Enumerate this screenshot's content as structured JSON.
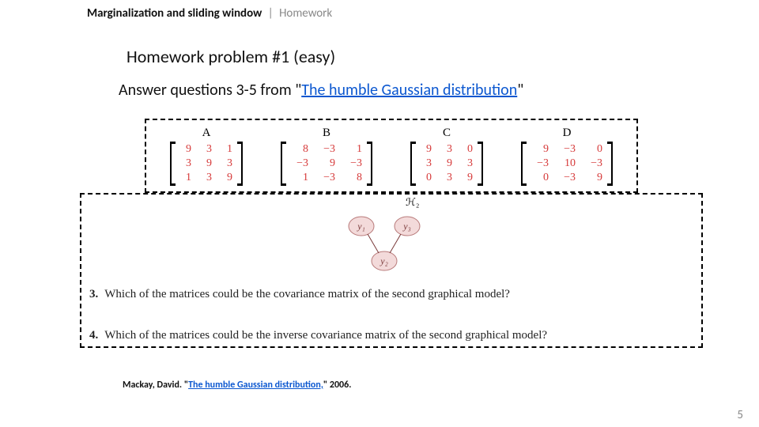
{
  "breadcrumb": {
    "section": "Marginalization and sliding window",
    "sep": "|",
    "tail": "Homework"
  },
  "title": "Homework problem #1 (easy)",
  "instruction": {
    "pre": "Answer questions 3-5 from \"",
    "link": "The humble Gaussian distribution",
    "post": "\""
  },
  "colors": {
    "matrix_value": "#d63a3a",
    "node_fill": "#f3dada",
    "node_stroke": "#b87a7a",
    "link": "#0b57d0"
  },
  "matrices": [
    {
      "label": "A",
      "rows": [
        [
          "9",
          "3",
          "1"
        ],
        [
          "3",
          "9",
          "3"
        ],
        [
          "1",
          "3",
          "9"
        ]
      ]
    },
    {
      "label": "B",
      "rows": [
        [
          "8",
          "−3",
          "1"
        ],
        [
          "−3",
          "9",
          "−3"
        ],
        [
          "1",
          "−3",
          "8"
        ]
      ]
    },
    {
      "label": "C",
      "rows": [
        [
          "9",
          "3",
          "0"
        ],
        [
          "3",
          "9",
          "3"
        ],
        [
          "0",
          "3",
          "9"
        ]
      ]
    },
    {
      "label": "D",
      "rows": [
        [
          "9",
          "−3",
          "0"
        ],
        [
          "−3",
          "10",
          "−3"
        ],
        [
          "0",
          "−3",
          "9"
        ]
      ]
    }
  ],
  "graph": {
    "label": "ℋ₂",
    "nodes": [
      "y₁",
      "y₃",
      "y₂"
    ]
  },
  "q3": {
    "num": "3.",
    "text": "Which of the matrices could be the covariance matrix of the second graphical model?"
  },
  "q4": {
    "num": "4.",
    "text": "Which of the matrices could be the inverse covariance matrix of the second graphical model?"
  },
  "citation": {
    "pre": "Mackay, David. \"",
    "link": "The humble Gaussian distribution,",
    "post": "\" 2006."
  },
  "pagenum": "5"
}
